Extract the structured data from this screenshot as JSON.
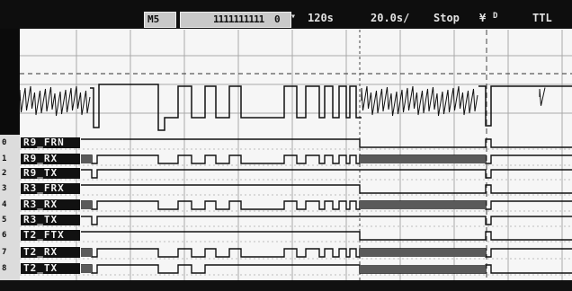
{
  "statusbar": {
    "trigger_mode_icon": "rising-edge-trigger-icon",
    "left_tag": "M5",
    "marker_ticks": "1111111111",
    "marker_suffix": "0",
    "time_offset": "120s",
    "time_div": "20.0s/",
    "run_state": "Stop",
    "trigger_source": "D",
    "trigger_glyph": "¥",
    "logic_level": "TTL"
  },
  "channels": [
    {
      "num": "0",
      "name": "R9_FRN"
    },
    {
      "num": "1",
      "name": "R9_RX"
    },
    {
      "num": "2",
      "name": "R9_TX"
    },
    {
      "num": "3",
      "name": "R3_FRX"
    },
    {
      "num": "4",
      "name": "R3_RX"
    },
    {
      "num": "5",
      "name": "R3_TX"
    },
    {
      "num": "6",
      "name": "T2_FTX"
    },
    {
      "num": "7",
      "name": "T2_RX"
    },
    {
      "num": "8",
      "name": "T2_TX"
    }
  ],
  "colors": {
    "background": "#0b0b0b",
    "screen": "#f6f6f6",
    "trace": "#111111",
    "grid": "#a9a9a9",
    "burst_fill": "#5a5a5a"
  }
}
